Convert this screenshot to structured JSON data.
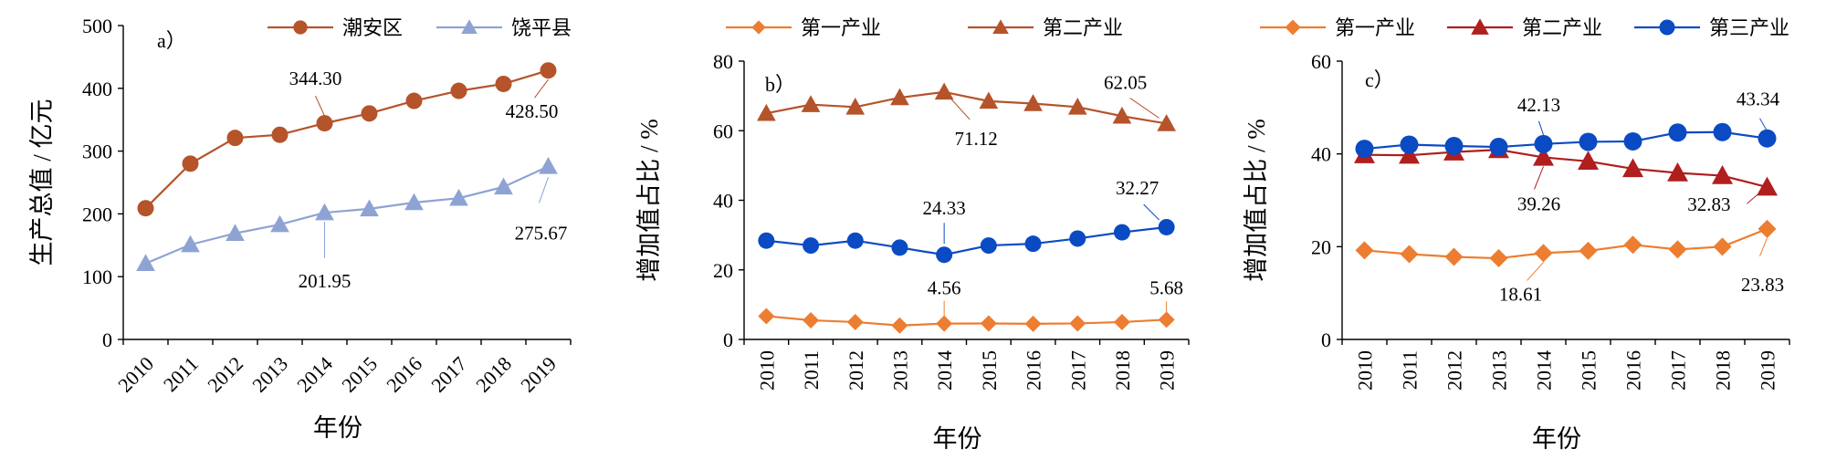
{
  "chart_data": [
    {
      "type": "line",
      "panel_label": "a）",
      "x": [
        "2010",
        "2011",
        "2012",
        "2013",
        "2014",
        "2015",
        "2016",
        "2017",
        "2018",
        "2019"
      ],
      "xlabel": "年份",
      "ylabel": "生产总值 / 亿元",
      "ylim": [
        0,
        500
      ],
      "yticks": [
        0,
        100,
        200,
        300,
        400,
        500
      ],
      "grid": false,
      "legend_position": "top-right",
      "series": [
        {
          "name": "潮安区",
          "color": "#b5532a",
          "marker": "circle",
          "values": [
            209,
            280,
            321,
            326,
            344.3,
            360,
            380,
            396,
            407,
            428.5
          ]
        },
        {
          "name": "饶平县",
          "color": "#8ea3d4",
          "marker": "triangle",
          "values": [
            121,
            151,
            169,
            183,
            201.95,
            208,
            218,
            225,
            243,
            275.67
          ]
        }
      ],
      "annotations": [
        {
          "text": "344.30",
          "series": 0,
          "index": 4
        },
        {
          "text": "428.50",
          "series": 0,
          "index": 9
        },
        {
          "text": "201.95",
          "series": 1,
          "index": 4
        },
        {
          "text": "275.67",
          "series": 1,
          "index": 9
        }
      ]
    },
    {
      "type": "line",
      "panel_label": "b）",
      "x": [
        "2010",
        "2011",
        "2012",
        "2013",
        "2014",
        "2015",
        "2016",
        "2017",
        "2018",
        "2019"
      ],
      "xlabel": "年份",
      "ylabel": "增加值占比 / %",
      "ylim": [
        0,
        80
      ],
      "yticks": [
        0,
        20,
        40,
        60,
        80
      ],
      "grid": false,
      "legend_position": "top",
      "series": [
        {
          "name": "第一产业",
          "color": "#ed7d31",
          "marker": "diamond",
          "values": [
            6.7,
            5.5,
            5.0,
            4.0,
            4.56,
            4.6,
            4.5,
            4.6,
            5.0,
            5.68
          ]
        },
        {
          "name": "第二产业",
          "color": "#b5532a",
          "marker": "triangle",
          "values": [
            65.0,
            67.5,
            66.8,
            69.5,
            71.12,
            68.5,
            67.8,
            66.8,
            64.2,
            62.05
          ]
        },
        {
          "name": "",
          "color": "#0a4bc4",
          "marker": "circle",
          "values": [
            28.4,
            27.0,
            28.4,
            26.4,
            24.33,
            27.0,
            27.5,
            29.0,
            30.8,
            32.27
          ]
        }
      ],
      "annotations": [
        {
          "text": "71.12",
          "series": 1,
          "index": 4
        },
        {
          "text": "62.05",
          "series": 1,
          "index": 9
        },
        {
          "text": "24.33",
          "series": 2,
          "index": 4
        },
        {
          "text": "32.27",
          "series": 2,
          "index": 9
        },
        {
          "text": "4.56",
          "series": 0,
          "index": 4
        },
        {
          "text": "5.68",
          "series": 0,
          "index": 9
        }
      ]
    },
    {
      "type": "line",
      "panel_label": "c）",
      "x": [
        "2010",
        "2011",
        "2012",
        "2013",
        "2014",
        "2015",
        "2016",
        "2017",
        "2018",
        "2019"
      ],
      "xlabel": "年份",
      "ylabel": "增加值占比 / %",
      "ylim": [
        0,
        60
      ],
      "yticks": [
        0,
        20,
        40,
        60
      ],
      "grid": false,
      "legend_position": "top",
      "series": [
        {
          "name": "第一产业",
          "color": "#ed7d31",
          "marker": "diamond",
          "values": [
            19.2,
            18.4,
            17.8,
            17.5,
            18.61,
            19.1,
            20.4,
            19.4,
            20.0,
            23.83
          ]
        },
        {
          "name": "第二产业",
          "color": "#b01e1e",
          "marker": "triangle",
          "values": [
            39.8,
            39.7,
            40.4,
            40.9,
            39.26,
            38.4,
            36.8,
            35.9,
            35.3,
            32.83
          ]
        },
        {
          "name": "第三产业",
          "color": "#0a4bc4",
          "marker": "circle",
          "values": [
            41.1,
            42.0,
            41.7,
            41.5,
            42.13,
            42.6,
            42.7,
            44.6,
            44.7,
            43.34
          ]
        }
      ],
      "annotations": [
        {
          "text": "42.13",
          "series": 2,
          "index": 4
        },
        {
          "text": "43.34",
          "series": 2,
          "index": 9
        },
        {
          "text": "39.26",
          "series": 1,
          "index": 4
        },
        {
          "text": "32.83",
          "series": 1,
          "index": 9
        },
        {
          "text": "18.61",
          "series": 0,
          "index": 4
        },
        {
          "text": "23.83",
          "series": 0,
          "index": 9
        }
      ]
    }
  ]
}
